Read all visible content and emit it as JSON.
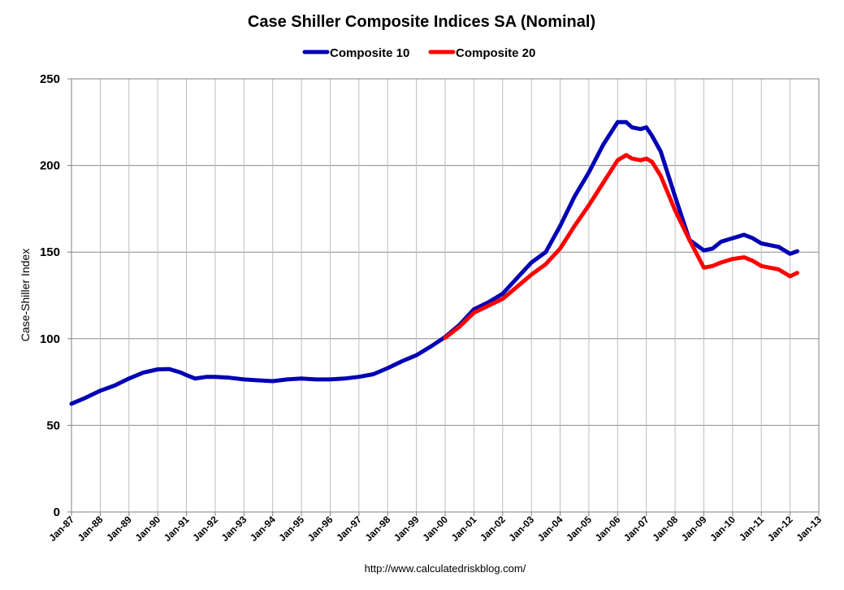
{
  "chart_data": {
    "type": "line",
    "title": "Case Shiller Composite Indices SA (Nominal)",
    "ylabel": "Case-Shiller Index",
    "xlabel": "",
    "ylim": [
      0,
      250
    ],
    "yticks": [
      0,
      50,
      100,
      150,
      200,
      250
    ],
    "xlim": [
      1987,
      2013
    ],
    "xtick_labels": [
      "Jan-87",
      "Jan-88",
      "Jan-89",
      "Jan-90",
      "Jan-91",
      "Jan-92",
      "Jan-93",
      "Jan-94",
      "Jan-95",
      "Jan-96",
      "Jan-97",
      "Jan-98",
      "Jan-99",
      "Jan-00",
      "Jan-01",
      "Jan-02",
      "Jan-03",
      "Jan-04",
      "Jan-05",
      "Jan-06",
      "Jan-07",
      "Jan-08",
      "Jan-09",
      "Jan-10",
      "Jan-11",
      "Jan-12",
      "Jan-13"
    ],
    "xtick_values": [
      1987,
      1988,
      1989,
      1990,
      1991,
      1992,
      1993,
      1994,
      1995,
      1996,
      1997,
      1998,
      1999,
      2000,
      2001,
      2002,
      2003,
      2004,
      2005,
      2006,
      2007,
      2008,
      2009,
      2010,
      2011,
      2012,
      2013
    ],
    "grid": true,
    "legend_position": "top-center",
    "source_note": "http://www.calculatedriskblog.com/",
    "series": [
      {
        "name": "Composite 10",
        "color": "#0000B4",
        "x": [
          1987.0,
          1987.5,
          1988.0,
          1988.5,
          1989.0,
          1989.5,
          1990.0,
          1990.4,
          1990.8,
          1991.0,
          1991.3,
          1991.7,
          1992.0,
          1992.5,
          1993.0,
          1993.5,
          1994.0,
          1994.5,
          1995.0,
          1995.5,
          1996.0,
          1996.5,
          1997.0,
          1997.5,
          1998.0,
          1998.5,
          1999.0,
          1999.5,
          2000.0,
          2000.5,
          2001.0,
          2001.5,
          2002.0,
          2002.5,
          2003.0,
          2003.5,
          2004.0,
          2004.5,
          2005.0,
          2005.5,
          2006.0,
          2006.3,
          2006.5,
          2006.8,
          2007.0,
          2007.2,
          2007.5,
          2008.0,
          2008.5,
          2009.0,
          2009.3,
          2009.6,
          2010.0,
          2010.4,
          2010.7,
          2011.0,
          2011.3,
          2011.6,
          2012.0,
          2012.25
        ],
        "values": [
          62.5,
          66,
          70,
          73,
          77,
          80.5,
          82.3,
          82.5,
          80.5,
          79,
          77,
          78,
          78,
          77.5,
          76.5,
          76,
          75.5,
          76.5,
          77,
          76.5,
          76.5,
          77,
          78,
          79.5,
          83,
          87,
          90.5,
          95.5,
          101,
          108,
          117,
          121,
          126,
          135,
          144,
          150,
          165,
          182,
          196,
          212,
          225,
          225,
          222,
          221,
          222,
          217,
          208,
          182,
          157,
          151,
          152,
          156,
          158,
          160,
          158,
          155,
          154,
          153,
          149,
          150.5
        ]
      },
      {
        "name": "Composite 20",
        "color": "#FF0000",
        "x": [
          2000.0,
          2000.5,
          2001.0,
          2001.5,
          2002.0,
          2002.5,
          2003.0,
          2003.5,
          2004.0,
          2004.5,
          2005.0,
          2005.5,
          2006.0,
          2006.3,
          2006.5,
          2006.8,
          2007.0,
          2007.2,
          2007.5,
          2008.0,
          2008.5,
          2009.0,
          2009.3,
          2009.6,
          2010.0,
          2010.4,
          2010.7,
          2011.0,
          2011.3,
          2011.6,
          2012.0,
          2012.25
        ],
        "values": [
          100.5,
          107,
          115,
          119,
          123,
          130,
          137,
          143,
          152,
          165,
          177,
          190,
          203,
          206,
          204,
          203,
          204,
          202,
          194,
          174,
          157,
          141,
          142,
          144,
          146,
          147,
          145,
          142,
          141,
          140,
          136,
          138
        ]
      }
    ]
  }
}
